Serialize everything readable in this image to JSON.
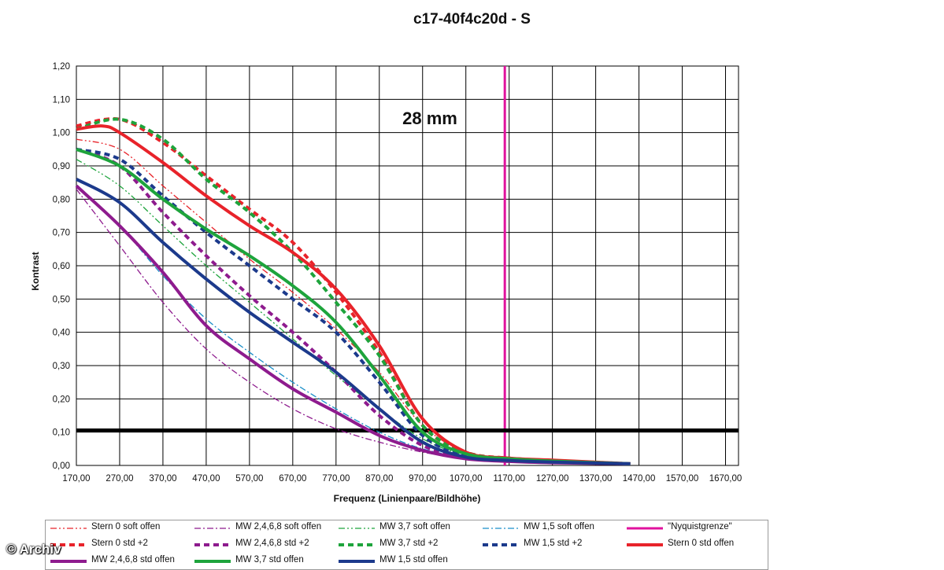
{
  "credit": "© Archiv",
  "chart_data": {
    "type": "line",
    "title": "c17-40f4c20d - S",
    "annotation": "28 mm",
    "xlabel": "Frequenz (Linienpaare/Bildhöhe)",
    "ylabel": "Kontrast",
    "xlim": [
      170,
      1700
    ],
    "ylim": [
      0,
      1.2
    ],
    "grid": true,
    "legend_position": "bottom",
    "x_ticks": [
      "170,00",
      "270,00",
      "370,00",
      "470,00",
      "570,00",
      "670,00",
      "770,00",
      "870,00",
      "970,00",
      "1070,00",
      "1170,00",
      "1270,00",
      "1370,00",
      "1470,00",
      "1570,00",
      "1670,00"
    ],
    "y_ticks": [
      "0,00",
      "0,10",
      "0,20",
      "0,30",
      "0,40",
      "0,50",
      "0,60",
      "0,70",
      "0,80",
      "0,90",
      "1,00",
      "1,10",
      "1,20"
    ],
    "reference_lines": [
      {
        "name": "\"Nyquistgrenze\"",
        "orientation": "vertical",
        "value": 1160,
        "color": "#e0119d"
      },
      {
        "orientation": "horizontal",
        "value": 0.105,
        "color": "#000000"
      }
    ],
    "series": [
      {
        "name": "Stern 0 soft offen",
        "color": "#e8232a",
        "style": "dashdotdot",
        "width": 1.3,
        "points": [
          [
            170,
            0.98
          ],
          [
            270,
            0.95
          ],
          [
            370,
            0.84
          ],
          [
            470,
            0.73
          ],
          [
            570,
            0.62
          ],
          [
            670,
            0.52
          ],
          [
            770,
            0.41
          ],
          [
            870,
            0.28
          ],
          [
            970,
            0.12
          ],
          [
            1070,
            0.04
          ],
          [
            1170,
            0.02
          ],
          [
            1270,
            0.015
          ],
          [
            1370,
            0.01
          ],
          [
            1450,
            0.005
          ]
        ]
      },
      {
        "name": "MW 2,4,6,8 soft offen",
        "color": "#8e1b8e",
        "style": "dashdot",
        "width": 1.3,
        "points": [
          [
            170,
            0.83
          ],
          [
            270,
            0.66
          ],
          [
            370,
            0.49
          ],
          [
            470,
            0.35
          ],
          [
            570,
            0.25
          ],
          [
            670,
            0.17
          ],
          [
            770,
            0.11
          ],
          [
            870,
            0.07
          ],
          [
            970,
            0.04
          ],
          [
            1070,
            0.02
          ],
          [
            1170,
            0.012
          ],
          [
            1270,
            0.008
          ],
          [
            1450,
            0.005
          ]
        ]
      },
      {
        "name": "MW 3,7 soft offen",
        "color": "#1ea43c",
        "style": "dashdotdot",
        "width": 1.3,
        "points": [
          [
            170,
            0.92
          ],
          [
            270,
            0.84
          ],
          [
            370,
            0.72
          ],
          [
            470,
            0.6
          ],
          [
            570,
            0.49
          ],
          [
            670,
            0.38
          ],
          [
            770,
            0.27
          ],
          [
            870,
            0.17
          ],
          [
            970,
            0.08
          ],
          [
            1070,
            0.03
          ],
          [
            1170,
            0.018
          ],
          [
            1270,
            0.012
          ],
          [
            1450,
            0.005
          ]
        ]
      },
      {
        "name": "MW 1,5 soft offen",
        "color": "#1a8fc9",
        "style": "dashdot",
        "width": 1.3,
        "points": [
          [
            170,
            0.84
          ],
          [
            270,
            0.72
          ],
          [
            370,
            0.57
          ],
          [
            470,
            0.44
          ],
          [
            570,
            0.34
          ],
          [
            670,
            0.25
          ],
          [
            770,
            0.17
          ],
          [
            870,
            0.1
          ],
          [
            970,
            0.05
          ],
          [
            1070,
            0.025
          ],
          [
            1170,
            0.015
          ],
          [
            1270,
            0.01
          ],
          [
            1450,
            0.005
          ]
        ]
      },
      {
        "name": "Stern 0 std +2",
        "color": "#e8232a",
        "style": "dashed",
        "width": 4,
        "points": [
          [
            170,
            1.02
          ],
          [
            270,
            1.04
          ],
          [
            370,
            0.97
          ],
          [
            470,
            0.87
          ],
          [
            570,
            0.77
          ],
          [
            670,
            0.67
          ],
          [
            770,
            0.52
          ],
          [
            870,
            0.34
          ],
          [
            970,
            0.12
          ],
          [
            1070,
            0.04
          ],
          [
            1170,
            0.022
          ],
          [
            1270,
            0.015
          ],
          [
            1450,
            0.005
          ]
        ]
      },
      {
        "name": "MW 2,4,6,8 std +2",
        "color": "#8e1b8e",
        "style": "dashed",
        "width": 4,
        "points": [
          [
            170,
            0.95
          ],
          [
            270,
            0.9
          ],
          [
            370,
            0.76
          ],
          [
            470,
            0.63
          ],
          [
            570,
            0.51
          ],
          [
            670,
            0.4
          ],
          [
            770,
            0.28
          ],
          [
            870,
            0.15
          ],
          [
            970,
            0.06
          ],
          [
            1070,
            0.025
          ],
          [
            1170,
            0.015
          ],
          [
            1270,
            0.01
          ],
          [
            1450,
            0.005
          ]
        ]
      },
      {
        "name": "MW 3,7 std +2",
        "color": "#1ea43c",
        "style": "dashed",
        "width": 4,
        "points": [
          [
            170,
            1.01
          ],
          [
            270,
            1.04
          ],
          [
            370,
            0.98
          ],
          [
            470,
            0.86
          ],
          [
            570,
            0.76
          ],
          [
            670,
            0.64
          ],
          [
            770,
            0.49
          ],
          [
            870,
            0.33
          ],
          [
            970,
            0.12
          ],
          [
            1070,
            0.04
          ],
          [
            1170,
            0.02
          ],
          [
            1270,
            0.014
          ],
          [
            1450,
            0.005
          ]
        ]
      },
      {
        "name": "MW 1,5 std +2",
        "color": "#1c3a8c",
        "style": "dashed",
        "width": 4,
        "points": [
          [
            170,
            0.95
          ],
          [
            270,
            0.92
          ],
          [
            370,
            0.81
          ],
          [
            470,
            0.7
          ],
          [
            570,
            0.6
          ],
          [
            670,
            0.5
          ],
          [
            770,
            0.4
          ],
          [
            870,
            0.25
          ],
          [
            970,
            0.09
          ],
          [
            1070,
            0.03
          ],
          [
            1170,
            0.018
          ],
          [
            1270,
            0.012
          ],
          [
            1450,
            0.005
          ]
        ]
      },
      {
        "name": "Stern 0 std offen",
        "color": "#e8232a",
        "style": "solid",
        "width": 4,
        "points": [
          [
            170,
            1.01
          ],
          [
            230,
            1.02
          ],
          [
            270,
            1.0
          ],
          [
            370,
            0.91
          ],
          [
            470,
            0.81
          ],
          [
            570,
            0.72
          ],
          [
            670,
            0.64
          ],
          [
            770,
            0.53
          ],
          [
            870,
            0.36
          ],
          [
            970,
            0.14
          ],
          [
            1070,
            0.04
          ],
          [
            1170,
            0.022
          ],
          [
            1270,
            0.016
          ],
          [
            1450,
            0.005
          ]
        ]
      },
      {
        "name": "MW 2,4,6,8 std offen",
        "color": "#8e1b8e",
        "style": "solid",
        "width": 4,
        "points": [
          [
            170,
            0.84
          ],
          [
            270,
            0.72
          ],
          [
            370,
            0.58
          ],
          [
            470,
            0.42
          ],
          [
            570,
            0.32
          ],
          [
            670,
            0.23
          ],
          [
            770,
            0.16
          ],
          [
            870,
            0.09
          ],
          [
            970,
            0.045
          ],
          [
            1070,
            0.02
          ],
          [
            1170,
            0.012
          ],
          [
            1270,
            0.008
          ],
          [
            1450,
            0.005
          ]
        ]
      },
      {
        "name": "MW 3,7 std offen",
        "color": "#1ea43c",
        "style": "solid",
        "width": 4,
        "points": [
          [
            170,
            0.95
          ],
          [
            270,
            0.9
          ],
          [
            370,
            0.8
          ],
          [
            470,
            0.71
          ],
          [
            570,
            0.63
          ],
          [
            670,
            0.54
          ],
          [
            770,
            0.43
          ],
          [
            870,
            0.27
          ],
          [
            970,
            0.1
          ],
          [
            1070,
            0.035
          ],
          [
            1170,
            0.02
          ],
          [
            1270,
            0.013
          ],
          [
            1450,
            0.005
          ]
        ]
      },
      {
        "name": "MW 1,5 std offen",
        "color": "#1c3a8c",
        "style": "solid",
        "width": 4,
        "points": [
          [
            170,
            0.86
          ],
          [
            270,
            0.79
          ],
          [
            370,
            0.67
          ],
          [
            470,
            0.56
          ],
          [
            570,
            0.46
          ],
          [
            670,
            0.37
          ],
          [
            770,
            0.28
          ],
          [
            870,
            0.17
          ],
          [
            970,
            0.07
          ],
          [
            1070,
            0.025
          ],
          [
            1170,
            0.015
          ],
          [
            1270,
            0.01
          ],
          [
            1450,
            0.005
          ]
        ]
      }
    ],
    "legend_order": [
      "Stern 0 soft offen",
      "MW 2,4,6,8 soft offen",
      "MW 3,7 soft offen",
      "MW 1,5 soft offen",
      "\"Nyquistgrenze\"",
      "Stern 0 std +2",
      "MW 2,4,6,8 std +2",
      "MW 3,7 std +2",
      "MW 1,5 std +2",
      "Stern 0 std offen",
      "MW 2,4,6,8 std offen",
      "MW 3,7 std offen",
      "MW 1,5 std offen"
    ]
  }
}
